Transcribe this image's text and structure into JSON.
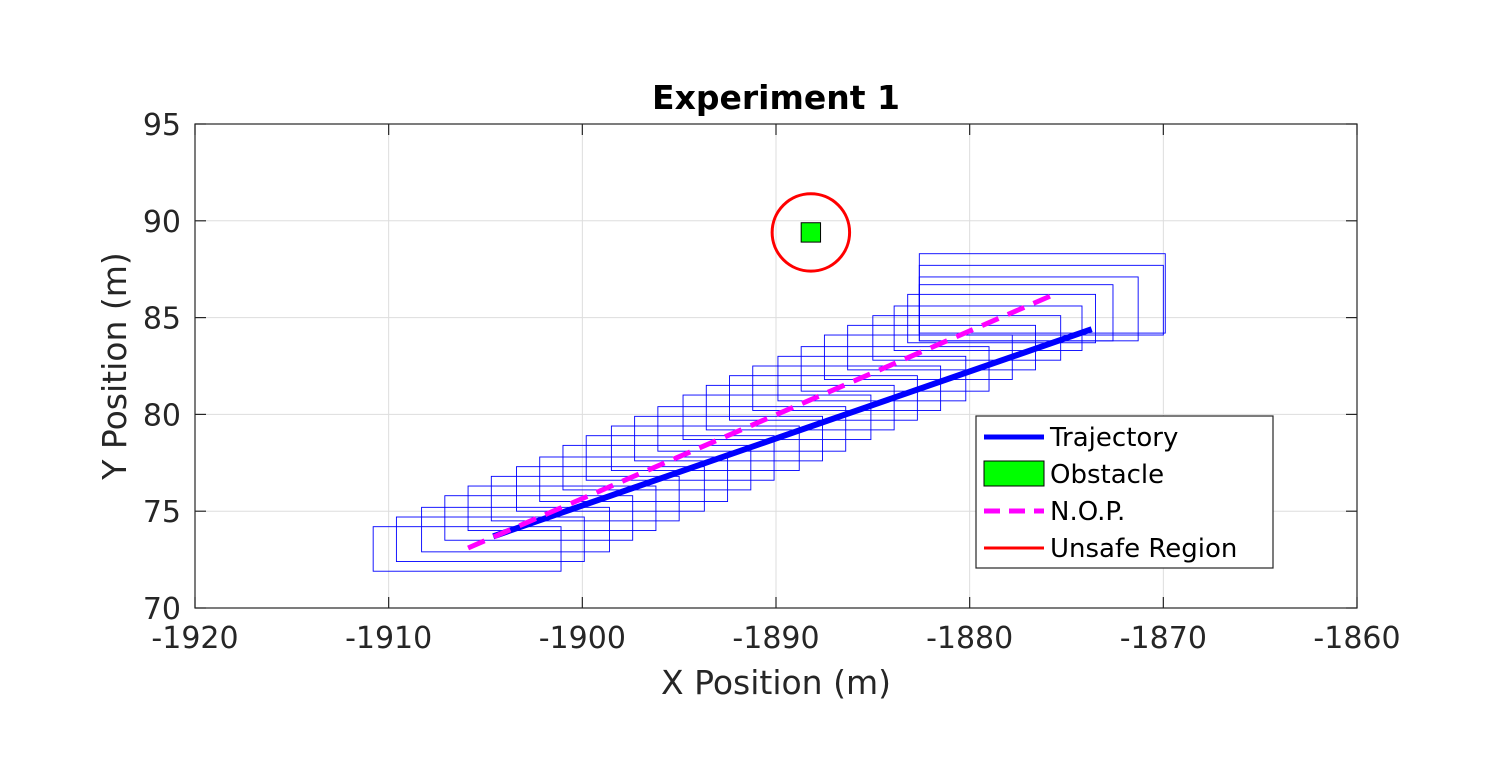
{
  "chart_data": {
    "type": "line",
    "title": "Experiment 1",
    "xlabel": "X Position (m)",
    "ylabel": "Y Position (m)",
    "xlim": [
      -1920,
      -1860
    ],
    "ylim": [
      70,
      95
    ],
    "xticks": [
      -1920,
      -1910,
      -1900,
      -1890,
      -1880,
      -1870,
      -1860
    ],
    "yticks": [
      70,
      75,
      80,
      85,
      90,
      95
    ],
    "grid": true,
    "legend_position": "lower-right",
    "colors": {
      "trajectory": "#0000ff",
      "obstacle": "#00ff00",
      "nop": "#ff00ff",
      "unsafe_region": "#ff0000",
      "boxes": "#0000ff",
      "grid": "#dddddd",
      "axes": "#262626"
    },
    "series": [
      {
        "name": "Trajectory",
        "style": "solid",
        "x": [
          -1904.6,
          -1873.7
        ],
        "y": [
          73.7,
          84.4
        ]
      },
      {
        "name": "N.O.P.",
        "style": "dashed",
        "x": [
          -1905.9,
          -1875.4
        ],
        "y": [
          73.1,
          86.3
        ]
      }
    ],
    "obstacle": {
      "name": "Obstacle",
      "x": -1888.2,
      "y": 89.4,
      "size": 1.0
    },
    "unsafe_region": {
      "name": "Unsafe Region",
      "center_x": -1888.2,
      "center_y": 89.4,
      "radius": 2.0
    },
    "boxes": [
      {
        "x1": -1910.8,
        "x2": -1901.1,
        "y1": 71.9,
        "y2": 74.2
      },
      {
        "x1": -1909.6,
        "x2": -1899.9,
        "y1": 72.4,
        "y2": 74.7
      },
      {
        "x1": -1908.3,
        "x2": -1898.6,
        "y1": 72.9,
        "y2": 75.2
      },
      {
        "x1": -1907.1,
        "x2": -1897.4,
        "y1": 73.5,
        "y2": 75.8
      },
      {
        "x1": -1905.9,
        "x2": -1896.2,
        "y1": 74.0,
        "y2": 76.3
      },
      {
        "x1": -1904.7,
        "x2": -1895.0,
        "y1": 74.5,
        "y2": 76.8
      },
      {
        "x1": -1903.4,
        "x2": -1893.7,
        "y1": 75.0,
        "y2": 77.3
      },
      {
        "x1": -1902.2,
        "x2": -1892.5,
        "y1": 75.5,
        "y2": 77.8
      },
      {
        "x1": -1901.0,
        "x2": -1891.3,
        "y1": 76.1,
        "y2": 78.4
      },
      {
        "x1": -1899.8,
        "x2": -1890.1,
        "y1": 76.6,
        "y2": 78.9
      },
      {
        "x1": -1898.5,
        "x2": -1888.8,
        "y1": 77.1,
        "y2": 79.4
      },
      {
        "x1": -1897.3,
        "x2": -1887.6,
        "y1": 77.6,
        "y2": 79.9
      },
      {
        "x1": -1896.1,
        "x2": -1886.4,
        "y1": 78.1,
        "y2": 80.4
      },
      {
        "x1": -1894.8,
        "x2": -1885.1,
        "y1": 78.7,
        "y2": 81.0
      },
      {
        "x1": -1893.6,
        "x2": -1883.9,
        "y1": 79.2,
        "y2": 81.5
      },
      {
        "x1": -1892.4,
        "x2": -1882.7,
        "y1": 79.7,
        "y2": 82.0
      },
      {
        "x1": -1891.2,
        "x2": -1881.5,
        "y1": 80.2,
        "y2": 82.5
      },
      {
        "x1": -1889.9,
        "x2": -1880.2,
        "y1": 80.7,
        "y2": 83.0
      },
      {
        "x1": -1888.7,
        "x2": -1879.0,
        "y1": 81.2,
        "y2": 83.5
      },
      {
        "x1": -1887.5,
        "x2": -1877.8,
        "y1": 81.8,
        "y2": 84.1
      },
      {
        "x1": -1886.3,
        "x2": -1876.6,
        "y1": 82.3,
        "y2": 84.6
      },
      {
        "x1": -1885.0,
        "x2": -1875.3,
        "y1": 82.8,
        "y2": 85.1
      },
      {
        "x1": -1883.9,
        "x2": -1874.2,
        "y1": 83.3,
        "y2": 85.6
      },
      {
        "x1": -1883.2,
        "x2": -1873.5,
        "y1": 83.7,
        "y2": 86.2
      },
      {
        "x1": -1882.6,
        "x2": -1872.6,
        "y1": 83.8,
        "y2": 86.7
      },
      {
        "x1": -1882.6,
        "x2": -1871.3,
        "y1": 83.8,
        "y2": 87.1
      },
      {
        "x1": -1882.6,
        "x2": -1870.0,
        "y1": 84.1,
        "y2": 87.7
      },
      {
        "x1": -1882.6,
        "x2": -1869.9,
        "y1": 84.2,
        "y2": 88.3
      }
    ],
    "legend": [
      "Trajectory",
      "Obstacle",
      "N.O.P.",
      "Unsafe Region"
    ]
  }
}
